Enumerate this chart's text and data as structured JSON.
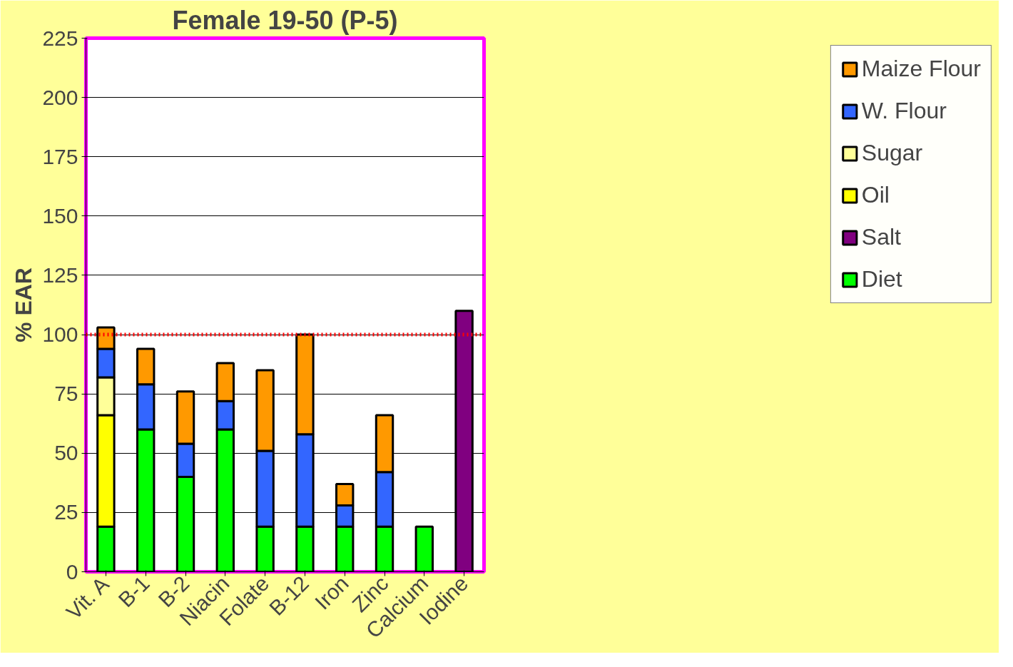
{
  "chart_data": {
    "type": "bar",
    "title": "Female 19-50 (P-5)",
    "ylabel": "% EAR",
    "stacked": true,
    "categories": [
      "Vit. A",
      "B-1",
      "B-2",
      "Niacin",
      "Folate",
      "B-12",
      "Iron",
      "Zinc",
      "Calcium",
      "Iodine"
    ],
    "series": [
      {
        "name": "Diet",
        "color": "#00ff00",
        "values": [
          19,
          60,
          40,
          60,
          19,
          19,
          19,
          19,
          19,
          null
        ]
      },
      {
        "name": "Salt",
        "color": "#800080",
        "values": [
          null,
          null,
          null,
          null,
          null,
          null,
          null,
          null,
          null,
          110
        ]
      },
      {
        "name": "Oil",
        "color": "#ffff00",
        "values": [
          47,
          null,
          null,
          null,
          null,
          null,
          null,
          null,
          null,
          null
        ]
      },
      {
        "name": "Sugar",
        "color": "#ffff99",
        "values": [
          16,
          null,
          null,
          null,
          null,
          null,
          null,
          null,
          null,
          null
        ]
      },
      {
        "name": "W. Flour",
        "color": "#3366ff",
        "values": [
          12,
          19,
          14,
          12,
          32,
          39,
          9,
          23,
          null,
          null
        ]
      },
      {
        "name": "Maize Flour",
        "color": "#ff9900",
        "values": [
          9,
          15,
          22,
          16,
          34,
          42,
          9,
          24,
          null,
          null
        ]
      }
    ],
    "ylim": [
      0,
      225
    ],
    "yticks": [
      0,
      25,
      50,
      75,
      100,
      125,
      150,
      175,
      200,
      225
    ],
    "grid": "y",
    "legend": "right",
    "ref_lines": [
      {
        "axis": "y",
        "value": 100,
        "label": null,
        "color": "#ff0000",
        "line_style": "dotted"
      }
    ]
  }
}
